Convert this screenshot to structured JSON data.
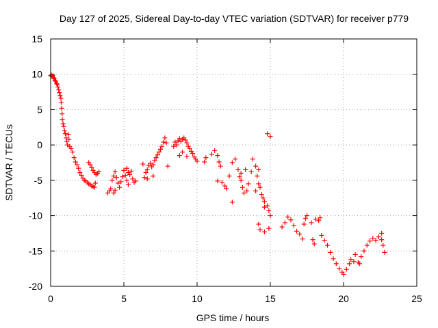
{
  "chart_data": {
    "type": "scatter",
    "title": "Day 127 of 2025, Sidereal Day-to-day VTEC variation (SDTVAR) for receiver p779",
    "xlabel": "GPS time / hours",
    "ylabel": "SDTVAR / TECUs",
    "xlim": [
      0,
      25
    ],
    "ylim": [
      -20,
      15
    ],
    "xticks": [
      0,
      5,
      10,
      15,
      20,
      25
    ],
    "yticks": [
      -20,
      -15,
      -10,
      -5,
      0,
      5,
      10,
      15
    ],
    "grid": true,
    "marker": "+",
    "color": "#ff0000",
    "series": [
      {
        "name": "SDTVAR",
        "points": [
          [
            0.0,
            9.8
          ],
          [
            0.05,
            9.9
          ],
          [
            0.1,
            9.7
          ],
          [
            0.15,
            9.8
          ],
          [
            0.2,
            9.5
          ],
          [
            0.25,
            9.4
          ],
          [
            0.3,
            9.1
          ],
          [
            0.35,
            9.0
          ],
          [
            0.4,
            8.7
          ],
          [
            0.45,
            8.6
          ],
          [
            0.5,
            8.2
          ],
          [
            0.55,
            7.8
          ],
          [
            0.6,
            7.4
          ],
          [
            0.65,
            7.0
          ],
          [
            0.7,
            6.6
          ],
          [
            0.72,
            6.0
          ],
          [
            0.75,
            5.2
          ],
          [
            0.78,
            4.4
          ],
          [
            0.8,
            3.6
          ],
          [
            0.85,
            3.0
          ],
          [
            0.9,
            2.6
          ],
          [
            0.95,
            2.0
          ],
          [
            1.0,
            1.6
          ],
          [
            1.05,
            1.0
          ],
          [
            1.1,
            0.5
          ],
          [
            1.15,
            0.0
          ],
          [
            1.2,
            1.5
          ],
          [
            1.25,
            0.8
          ],
          [
            1.3,
            -0.2
          ],
          [
            1.4,
            -0.5
          ],
          [
            1.5,
            -1.0
          ],
          [
            1.6,
            -1.8
          ],
          [
            1.7,
            -2.4
          ],
          [
            1.8,
            -2.8
          ],
          [
            1.9,
            -3.3
          ],
          [
            2.0,
            -3.9
          ],
          [
            2.1,
            -4.3
          ],
          [
            2.2,
            -4.7
          ],
          [
            2.3,
            -5.0
          ],
          [
            2.4,
            -5.1
          ],
          [
            2.5,
            -5.3
          ],
          [
            2.6,
            -5.5
          ],
          [
            2.7,
            -5.6
          ],
          [
            2.8,
            -5.8
          ],
          [
            2.9,
            -5.9
          ],
          [
            3.0,
            -6.0
          ],
          [
            3.05,
            -5.4
          ],
          [
            3.1,
            -4.2
          ],
          [
            3.2,
            -4.0
          ],
          [
            3.3,
            -3.8
          ],
          [
            2.6,
            -2.5
          ],
          [
            2.7,
            -2.8
          ],
          [
            2.8,
            -3.2
          ],
          [
            2.9,
            -3.6
          ],
          [
            3.0,
            -3.9
          ],
          [
            3.9,
            -6.8
          ],
          [
            4.0,
            -6.5
          ],
          [
            4.1,
            -6.2
          ],
          [
            4.2,
            -5.0
          ],
          [
            4.3,
            -4.4
          ],
          [
            4.4,
            -3.8
          ],
          [
            4.5,
            -4.6
          ],
          [
            4.6,
            -5.4
          ],
          [
            4.7,
            -6.0
          ],
          [
            4.8,
            -5.2
          ],
          [
            4.9,
            -4.5
          ],
          [
            5.0,
            -3.6
          ],
          [
            5.1,
            -4.3
          ],
          [
            5.2,
            -5.0
          ],
          [
            5.3,
            -5.6
          ],
          [
            5.4,
            -4.2
          ],
          [
            5.5,
            -3.7
          ],
          [
            5.6,
            -4.8
          ],
          [
            5.7,
            -5.3
          ],
          [
            5.8,
            -5.1
          ],
          [
            4.4,
            -6.4
          ],
          [
            4.3,
            -6.8
          ],
          [
            5.2,
            -3.3
          ],
          [
            5.3,
            -3.9
          ],
          [
            6.4,
            -4.6
          ],
          [
            6.5,
            -3.9
          ],
          [
            6.6,
            -3.5
          ],
          [
            6.7,
            -2.9
          ],
          [
            6.8,
            -2.6
          ],
          [
            6.9,
            -3.1
          ],
          [
            7.0,
            -2.8
          ],
          [
            7.1,
            -2.2
          ],
          [
            7.2,
            -1.8
          ],
          [
            7.3,
            -1.4
          ],
          [
            7.4,
            -1.0
          ],
          [
            7.5,
            -0.6
          ],
          [
            7.6,
            -0.2
          ],
          [
            7.7,
            0.4
          ],
          [
            7.8,
            1.0
          ],
          [
            7.9,
            0.3
          ],
          [
            8.0,
            -3.0
          ],
          [
            6.3,
            -2.7
          ],
          [
            6.6,
            -4.8
          ],
          [
            7.0,
            -4.4
          ],
          [
            8.4,
            -0.2
          ],
          [
            8.5,
            0.4
          ],
          [
            8.6,
            0.0
          ],
          [
            8.7,
            0.6
          ],
          [
            8.8,
            0.9
          ],
          [
            8.9,
            0.5
          ],
          [
            9.0,
            0.8
          ],
          [
            9.1,
            1.0
          ],
          [
            9.2,
            0.7
          ],
          [
            9.3,
            0.3
          ],
          [
            9.4,
            -0.2
          ],
          [
            9.5,
            -0.5
          ],
          [
            9.6,
            -0.9
          ],
          [
            9.7,
            -1.2
          ],
          [
            9.8,
            -1.7
          ],
          [
            9.9,
            -2.0
          ],
          [
            10.0,
            -2.3
          ],
          [
            8.8,
            -1.5
          ],
          [
            9.0,
            -1.0
          ],
          [
            9.3,
            -1.6
          ],
          [
            10.5,
            -2.4
          ],
          [
            10.6,
            -1.8
          ],
          [
            11.0,
            -1.3
          ],
          [
            11.2,
            -0.8
          ],
          [
            11.4,
            -1.5
          ],
          [
            11.5,
            -2.4
          ],
          [
            11.6,
            -3.0
          ],
          [
            11.4,
            -5.1
          ],
          [
            11.7,
            -5.3
          ],
          [
            11.9,
            -5.8
          ],
          [
            12.0,
            -6.2
          ],
          [
            12.2,
            -4.4
          ],
          [
            12.4,
            -2.5
          ],
          [
            12.6,
            -2.0
          ],
          [
            12.8,
            -3.5
          ],
          [
            12.9,
            -4.5
          ],
          [
            13.0,
            -5.0
          ],
          [
            13.1,
            -6.0
          ],
          [
            13.2,
            -6.8
          ],
          [
            13.4,
            -6.5
          ],
          [
            13.5,
            -5.5
          ],
          [
            13.7,
            -3.8
          ],
          [
            13.8,
            -2.0
          ],
          [
            14.0,
            -3.0
          ],
          [
            14.1,
            -4.4
          ],
          [
            14.2,
            -5.5
          ],
          [
            14.3,
            -6.0
          ],
          [
            14.4,
            -7.0
          ],
          [
            14.5,
            -7.5
          ],
          [
            14.6,
            -8.0
          ],
          [
            12.4,
            -8.1
          ],
          [
            13.0,
            -4.0
          ],
          [
            13.3,
            -3.5
          ],
          [
            14.0,
            -6.5
          ],
          [
            14.2,
            -3.5
          ],
          [
            14.6,
            -8.8
          ],
          [
            14.8,
            -8.6
          ],
          [
            14.9,
            -9.3
          ],
          [
            15.0,
            -10.0
          ],
          [
            14.2,
            -11.2
          ],
          [
            14.3,
            -12.0
          ],
          [
            14.6,
            -12.3
          ],
          [
            14.9,
            -11.8
          ],
          [
            14.8,
            1.6
          ],
          [
            15.0,
            1.2
          ],
          [
            15.8,
            -11.6
          ],
          [
            16.0,
            -11.0
          ],
          [
            16.2,
            -10.2
          ],
          [
            16.4,
            -10.6
          ],
          [
            16.6,
            -11.4
          ],
          [
            16.8,
            -12.2
          ],
          [
            17.0,
            -12.6
          ],
          [
            17.2,
            -13.3
          ],
          [
            17.3,
            -11.2
          ],
          [
            17.4,
            -10.4
          ],
          [
            17.5,
            -10.0
          ],
          [
            17.8,
            -11.0
          ],
          [
            18.1,
            -10.5
          ],
          [
            18.3,
            -10.7
          ],
          [
            18.0,
            -14.0
          ],
          [
            17.9,
            -13.4
          ],
          [
            18.4,
            -10.3
          ],
          [
            18.5,
            -12.8
          ],
          [
            18.7,
            -13.5
          ],
          [
            18.9,
            -14.2
          ],
          [
            19.1,
            -15.2
          ],
          [
            19.3,
            -16.1
          ],
          [
            19.5,
            -16.8
          ],
          [
            19.7,
            -17.5
          ],
          [
            19.9,
            -18.0
          ],
          [
            20.0,
            -18.3
          ],
          [
            20.2,
            -17.6
          ],
          [
            20.4,
            -16.8
          ],
          [
            20.5,
            -16.2
          ],
          [
            20.8,
            -15.5
          ],
          [
            21.0,
            -16.6
          ],
          [
            21.2,
            -15.8
          ],
          [
            21.4,
            -15.0
          ],
          [
            21.6,
            -14.2
          ],
          [
            21.8,
            -13.6
          ],
          [
            22.0,
            -13.2
          ],
          [
            22.2,
            -13.5
          ],
          [
            22.4,
            -13.0
          ],
          [
            22.6,
            -12.5
          ],
          [
            22.7,
            -14.2
          ],
          [
            22.8,
            -15.2
          ],
          [
            22.6,
            -13.4
          ],
          [
            21.1,
            -16.8
          ],
          [
            20.7,
            -16.5
          ]
        ]
      }
    ]
  }
}
